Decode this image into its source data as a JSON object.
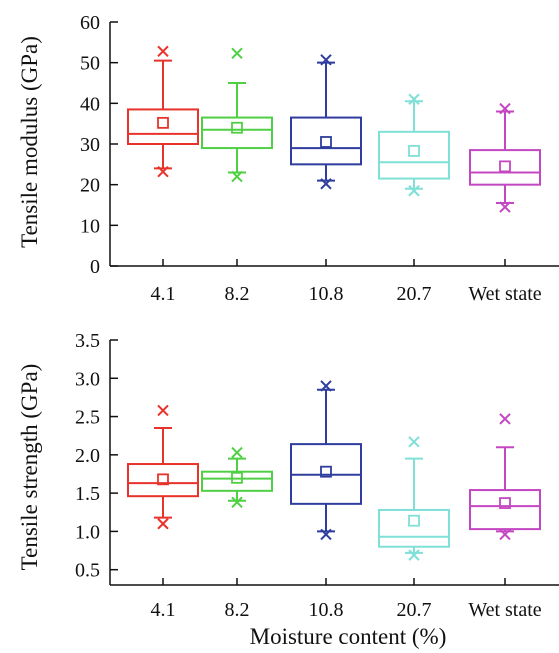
{
  "chart_data": [
    {
      "type": "box",
      "title": "",
      "xlabel": "",
      "ylabel": "Tensile modulus (GPa)",
      "ylim": [
        0,
        60
      ],
      "yticks": [
        0,
        10,
        20,
        30,
        40,
        50,
        60
      ],
      "yticklabels": [
        "0",
        "10",
        "20",
        "30",
        "40",
        "50",
        "60"
      ],
      "categories": [
        "4.1",
        "8.2",
        "10.8",
        "20.7",
        "Wet state"
      ],
      "grid": false,
      "series": [
        {
          "color": "#e8332b",
          "q1": 30,
          "median": 32.5,
          "q3": 38.5,
          "mean": 35.2,
          "whisker_low": 24,
          "whisker_high": 50.5,
          "min": 23.2,
          "max": 52.8
        },
        {
          "color": "#4fcf43",
          "q1": 29,
          "median": 33.5,
          "q3": 36.5,
          "mean": 34,
          "whisker_low": 23,
          "whisker_high": 45,
          "min": 22,
          "max": 52.3
        },
        {
          "color": "#2f3d9e",
          "q1": 25,
          "median": 29,
          "q3": 36.5,
          "mean": 30.5,
          "whisker_low": 21,
          "whisker_high": 50,
          "min": 20.2,
          "max": 50.7
        },
        {
          "color": "#7fe0d8",
          "q1": 21.5,
          "median": 25.5,
          "q3": 33,
          "mean": 28.3,
          "whisker_low": 19,
          "whisker_high": 40.5,
          "min": 18.5,
          "max": 41
        },
        {
          "color": "#c447c2",
          "q1": 20,
          "median": 23,
          "q3": 28.5,
          "mean": 24.5,
          "whisker_low": 15.5,
          "whisker_high": 38,
          "min": 14.5,
          "max": 38.7
        }
      ]
    },
    {
      "type": "box",
      "title": "",
      "xlabel": "Moisture content (%)",
      "ylabel": "Tensile strength (GPa)",
      "ylim": [
        0.3,
        3.5
      ],
      "yticks": [
        0.5,
        1.0,
        1.5,
        2.0,
        2.5,
        3.0,
        3.5
      ],
      "yticklabels": [
        "0.5",
        "1.0",
        "1.5",
        "2.0",
        "2.5",
        "3.0",
        "3.5"
      ],
      "categories": [
        "4.1",
        "8.2",
        "10.8",
        "20.7",
        "Wet state"
      ],
      "grid": false,
      "series": [
        {
          "color": "#e8332b",
          "q1": 1.46,
          "median": 1.63,
          "q3": 1.88,
          "mean": 1.68,
          "whisker_low": 1.18,
          "whisker_high": 2.35,
          "min": 1.1,
          "max": 2.58
        },
        {
          "color": "#4fcf43",
          "q1": 1.53,
          "median": 1.69,
          "q3": 1.78,
          "mean": 1.7,
          "whisker_low": 1.4,
          "whisker_high": 1.95,
          "min": 1.38,
          "max": 2.03
        },
        {
          "color": "#2f3d9e",
          "q1": 1.36,
          "median": 1.74,
          "q3": 2.14,
          "mean": 1.78,
          "whisker_low": 1.0,
          "whisker_high": 2.85,
          "min": 0.96,
          "max": 2.9
        },
        {
          "color": "#7fe0d8",
          "q1": 0.8,
          "median": 0.93,
          "q3": 1.28,
          "mean": 1.14,
          "whisker_low": 0.72,
          "whisker_high": 1.95,
          "min": 0.69,
          "max": 2.17
        },
        {
          "color": "#c447c2",
          "q1": 1.03,
          "median": 1.33,
          "q3": 1.54,
          "mean": 1.37,
          "whisker_low": 1.0,
          "whisker_high": 2.1,
          "min": 0.96,
          "max": 2.47
        }
      ]
    }
  ]
}
